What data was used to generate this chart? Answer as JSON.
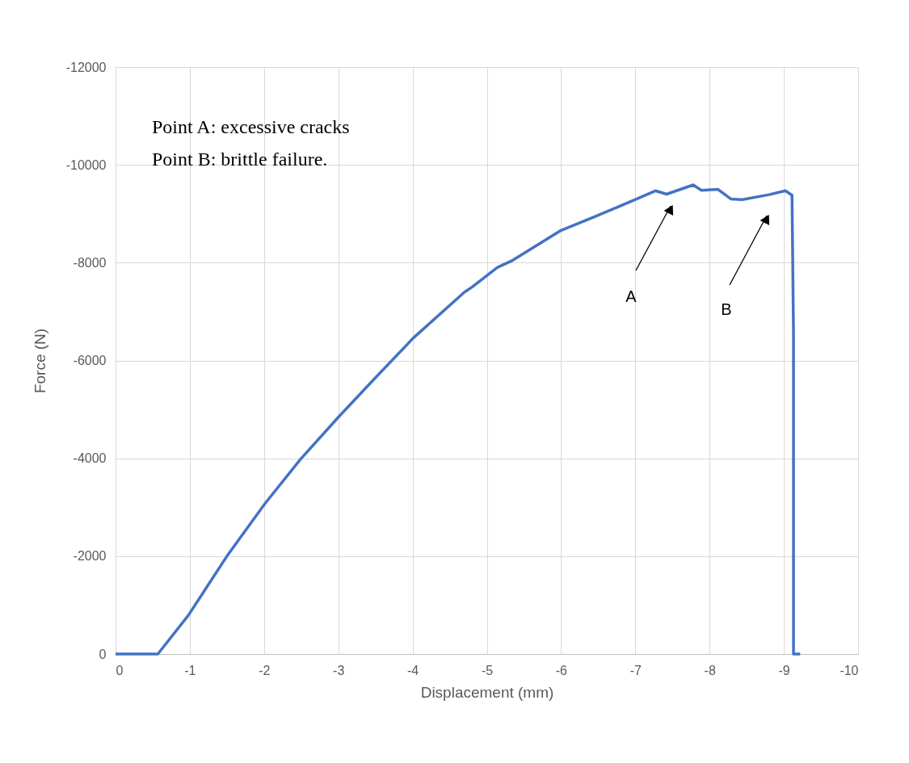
{
  "chart_data": {
    "type": "line",
    "xlabel": "Displacement (mm)",
    "ylabel": "Force (N)",
    "xlim": [
      0,
      -10
    ],
    "xticks": [
      0,
      -1,
      -2,
      -3,
      -4,
      -5,
      -6,
      -7,
      -8,
      -9,
      -10
    ],
    "ylim": [
      0,
      -12000
    ],
    "yticks": [
      0,
      -2000,
      -4000,
      -6000,
      -8000,
      -10000,
      -12000
    ],
    "grid": true,
    "line_style": "solid",
    "marker": "none",
    "series": [
      {
        "color": "#4472c4",
        "x": [
          0,
          -0.57,
          -0.98,
          -1.5,
          -2.01,
          -2.49,
          -3.0,
          -3.47,
          -4.01,
          -4.7,
          -4.8,
          -5.14,
          -5.35,
          -6.0,
          -6.44,
          -7.0,
          -7.27,
          -7.42,
          -7.78,
          -7.89,
          -8.11,
          -8.29,
          -8.44,
          -8.8,
          -9.02,
          -9.11,
          -9.13,
          -9.13,
          -9.22
        ],
        "values": [
          0,
          0,
          -790,
          -2000,
          -3070,
          -3980,
          -4840,
          -5600,
          -6460,
          -7400,
          -7500,
          -7900,
          -8050,
          -8660,
          -8930,
          -9290,
          -9470,
          -9400,
          -9590,
          -9480,
          -9500,
          -9300,
          -9290,
          -9390,
          -9470,
          -9380,
          -6580,
          0,
          0
        ]
      }
    ],
    "annotations": [
      "Point A: excessive cracks",
      "Point B: brittle failure.",
      "A",
      "B"
    ]
  }
}
